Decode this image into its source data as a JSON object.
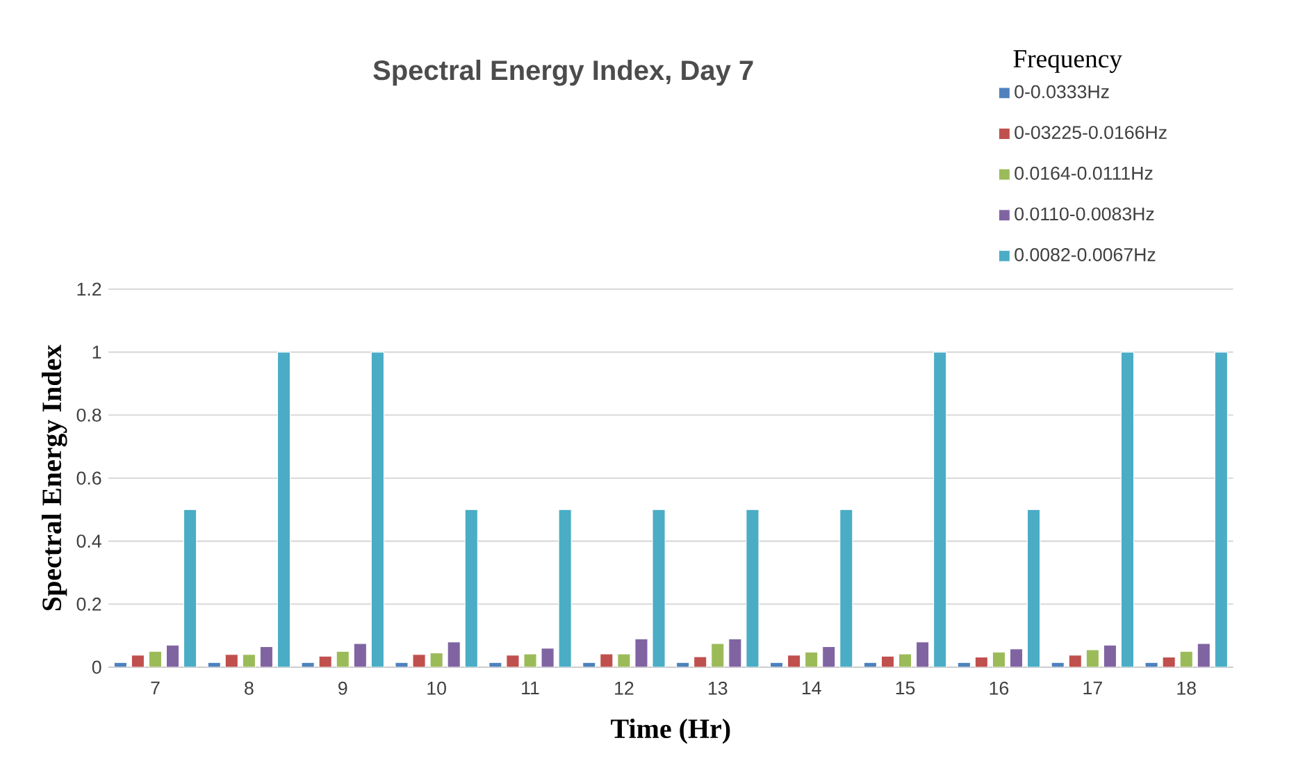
{
  "chart_data": {
    "type": "bar",
    "title": "Spectral Energy Index, Day 7",
    "xlabel": "Time (Hr)",
    "ylabel": "Spectral Energy Index",
    "legend_title": "Frequency",
    "categories": [
      "7",
      "8",
      "9",
      "10",
      "11",
      "12",
      "13",
      "14",
      "15",
      "16",
      "17",
      "18"
    ],
    "series": [
      {
        "name": "0-0.0333Hz",
        "color": "#4f81bd",
        "values": [
          0.015,
          0.015,
          0.015,
          0.015,
          0.015,
          0.015,
          0.015,
          0.015,
          0.015,
          0.015,
          0.015,
          0.015
        ]
      },
      {
        "name": "0-03225-0.0166Hz",
        "color": "#c0504d",
        "values": [
          0.038,
          0.04,
          0.035,
          0.04,
          0.038,
          0.042,
          0.033,
          0.038,
          0.035,
          0.032,
          0.038,
          0.032
        ]
      },
      {
        "name": "0.0164-0.0111Hz",
        "color": "#9bbb59",
        "values": [
          0.05,
          0.04,
          0.05,
          0.045,
          0.042,
          0.042,
          0.075,
          0.048,
          0.042,
          0.048,
          0.055,
          0.05
        ]
      },
      {
        "name": "0.0110-0.0083Hz",
        "color": "#8064a2",
        "values": [
          0.07,
          0.065,
          0.075,
          0.08,
          0.06,
          0.09,
          0.09,
          0.065,
          0.08,
          0.058,
          0.07,
          0.075
        ]
      },
      {
        "name": "0.0082-0.0067Hz",
        "color": "#4bacc6",
        "values": [
          0.5,
          1,
          1,
          0.5,
          0.5,
          0.5,
          0.5,
          0.5,
          1,
          0.5,
          1,
          1
        ]
      }
    ],
    "ylim": [
      0,
      1.2
    ],
    "yticks": [
      0,
      0.2,
      0.4,
      0.6,
      0.8,
      1,
      1.2
    ],
    "grid": "y",
    "legend": "top right"
  }
}
